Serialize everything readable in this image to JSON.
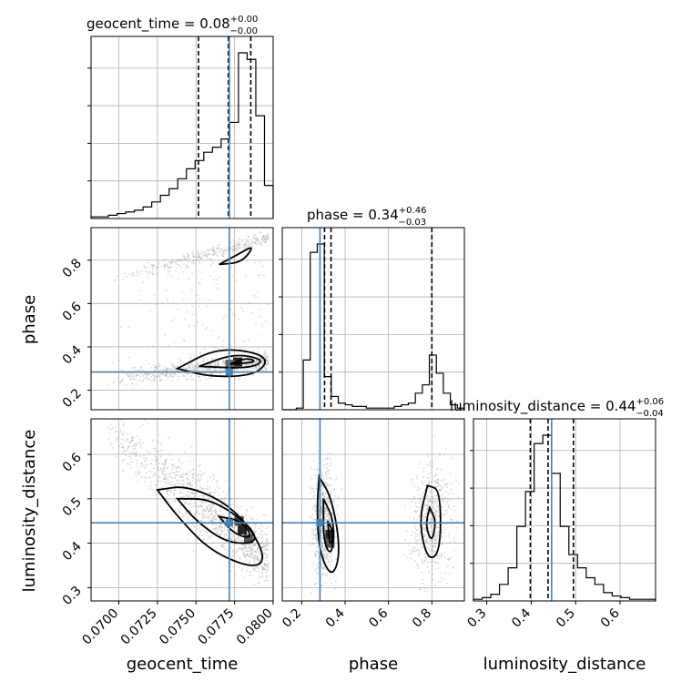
{
  "chart_data": {
    "type": "corner",
    "parameters": [
      "geocent_time",
      "phase",
      "luminosity_distance"
    ],
    "axis_labels": {
      "geocent_time": "geocent_time",
      "phase": "phase",
      "luminosity_distance": "luminosity_distance"
    },
    "ranges": {
      "geocent_time": [
        0.0682,
        0.08
      ],
      "phase": [
        0.11,
        0.95
      ],
      "luminosity_distance": [
        0.27,
        0.68
      ]
    },
    "ticks": {
      "geocent_time": [
        "0.0700",
        "0.0725",
        "0.0750",
        "0.0775",
        "0.0800"
      ],
      "phase": [
        "0.2",
        "0.4",
        "0.6",
        "0.8"
      ],
      "luminosity_distance": [
        "0.3",
        "0.4",
        "0.5",
        "0.6"
      ]
    },
    "titles": {
      "geocent_time": {
        "name": "geocent_time",
        "median": "0.08",
        "plus": "+0.00",
        "minus": "−0.00"
      },
      "phase": {
        "name": "phase",
        "median": "0.34",
        "plus": "+0.46",
        "minus": "−0.03"
      },
      "luminosity_distance": {
        "name": "luminosity_distance",
        "median": "0.44",
        "plus": "+0.06",
        "minus": "−0.04"
      }
    },
    "truths": {
      "geocent_time": 0.07716,
      "phase": 0.284,
      "luminosity_distance": 0.446
    },
    "quantiles": {
      "geocent_time": [
        0.07516,
        0.0771,
        0.07855
      ],
      "phase": [
        0.305,
        0.335,
        0.8
      ],
      "luminosity_distance": [
        0.398,
        0.438,
        0.495
      ]
    },
    "histograms": {
      "geocent_time": {
        "edges_range": [
          0.0682,
          0.08
        ],
        "counts": [
          1,
          1,
          2,
          3,
          4,
          5,
          7,
          10,
          14,
          18,
          24,
          30,
          35,
          40,
          43,
          48,
          58,
          100,
          96,
          62,
          20
        ]
      },
      "phase": {
        "edges_range": [
          0.11,
          0.95
        ],
        "counts": [
          0,
          0,
          1,
          30,
          95,
          100,
          20,
          8,
          4,
          3,
          2,
          2,
          1,
          1,
          1,
          1,
          2,
          3,
          4,
          10,
          15,
          33,
          22,
          10,
          3,
          1
        ]
      },
      "luminosity_distance": {
        "edges_range": [
          0.27,
          0.68
        ],
        "counts": [
          1,
          2,
          4,
          10,
          20,
          45,
          66,
          95,
          100,
          77,
          45,
          28,
          20,
          14,
          10,
          5,
          3,
          2,
          1,
          1,
          1
        ]
      }
    },
    "grid": true,
    "colors": {
      "truth": "#4682b4",
      "hist": "#000000",
      "scatter": "#999999",
      "grid": "#b0b0b0"
    }
  }
}
